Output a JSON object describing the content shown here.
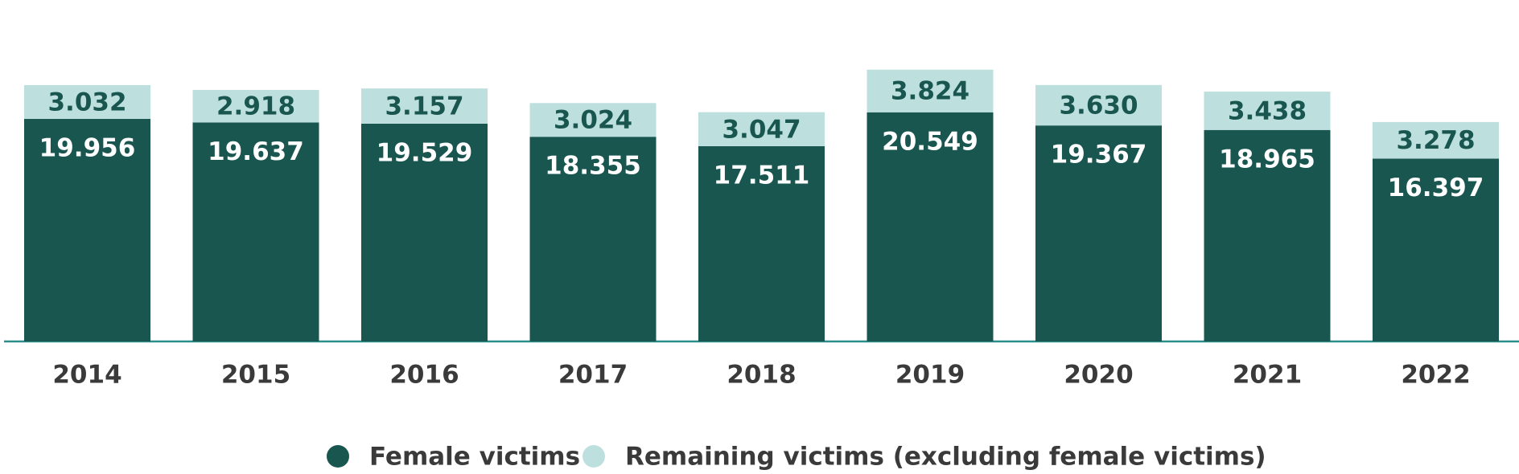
{
  "chart_data": {
    "type": "stacked_bar",
    "categories": [
      "2014",
      "2015",
      "2016",
      "2017",
      "2018",
      "2019",
      "2020",
      "2021",
      "2022"
    ],
    "series": [
      {
        "name": "Female victims",
        "color": "#1a5650",
        "values": [
          19956,
          19637,
          19529,
          18355,
          17511,
          20549,
          19367,
          18965,
          16397
        ],
        "value_labels": [
          "19.956",
          "19.637",
          "19.529",
          "18.355",
          "17.511",
          "20.549",
          "19.367",
          "18.965",
          "16.397"
        ]
      },
      {
        "name": "Remaining victims (excluding female victims)",
        "color": "#bde0de",
        "values": [
          3032,
          2918,
          3157,
          3024,
          3047,
          3824,
          3630,
          3438,
          3278
        ],
        "value_labels": [
          "3.032",
          "2.918",
          "3.157",
          "3.024",
          "3.047",
          "3.824",
          "3.630",
          "3.438",
          "3.278"
        ]
      }
    ],
    "ylim": [
      0,
      25000
    ]
  }
}
